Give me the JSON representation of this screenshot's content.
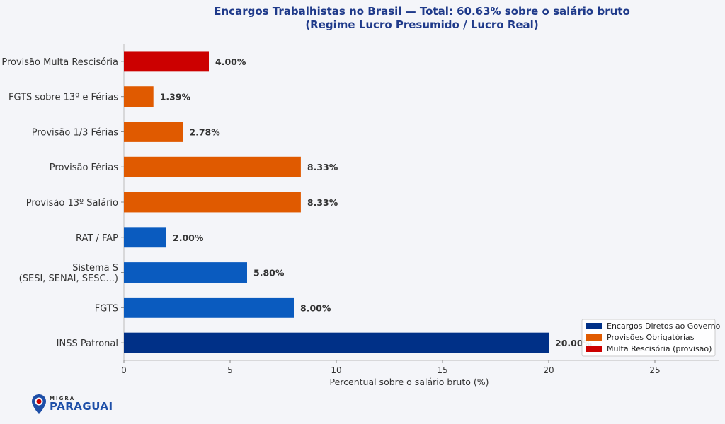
{
  "chart_data": {
    "type": "bar",
    "orientation": "horizontal",
    "title_line1": "Encargos Trabalhistas no Brasil — Total: 60.63% sobre o salário bruto",
    "title_line2": "(Regime Lucro Presumido / Lucro Real)",
    "xlabel": "Percentual sobre o salário bruto (%)",
    "xlim": [
      0,
      28
    ],
    "xticks": [
      0,
      5,
      10,
      15,
      20,
      25
    ],
    "categories": [
      {
        "label": [
          "Provisão Multa Rescisória"
        ],
        "value": 4.0,
        "value_label": "4.00%",
        "group": "multa"
      },
      {
        "label": [
          "FGTS sobre 13º e Férias"
        ],
        "value": 1.39,
        "value_label": "1.39%",
        "group": "provisoes"
      },
      {
        "label": [
          "Provisão 1/3 Férias"
        ],
        "value": 2.78,
        "value_label": "2.78%",
        "group": "provisoes"
      },
      {
        "label": [
          "Provisão Férias"
        ],
        "value": 8.33,
        "value_label": "8.33%",
        "group": "provisoes"
      },
      {
        "label": [
          "Provisão 13º Salário"
        ],
        "value": 8.33,
        "value_label": "8.33%",
        "group": "provisoes"
      },
      {
        "label": [
          "RAT / FAP"
        ],
        "value": 2.0,
        "value_label": "2.00%",
        "group": "diretos_light"
      },
      {
        "label": [
          "Sistema S",
          "(SESI, SENAI, SESC...)"
        ],
        "value": 5.8,
        "value_label": "5.80%",
        "group": "diretos_light"
      },
      {
        "label": [
          "FGTS"
        ],
        "value": 8.0,
        "value_label": "8.00%",
        "group": "diretos_light"
      },
      {
        "label": [
          "INSS Patronal"
        ],
        "value": 20.0,
        "value_label": "20.00%",
        "group": "diretos"
      }
    ],
    "colors": {
      "diretos": "#003087",
      "diretos_light": "#0a5bbf",
      "provisoes": "#e05a00",
      "multa": "#cc0000"
    },
    "legend": {
      "placement": "bottom-right",
      "entries": [
        {
          "label": "Encargos Diretos ao Governo",
          "color": "#003087"
        },
        {
          "label": "Provisões Obrigatórias",
          "color": "#e05a00"
        },
        {
          "label": "Multa Rescisória (provisão)",
          "color": "#cc0000"
        }
      ]
    }
  },
  "logo": {
    "small_text": "MIGRA",
    "big_text": "PARAGUAI"
  }
}
